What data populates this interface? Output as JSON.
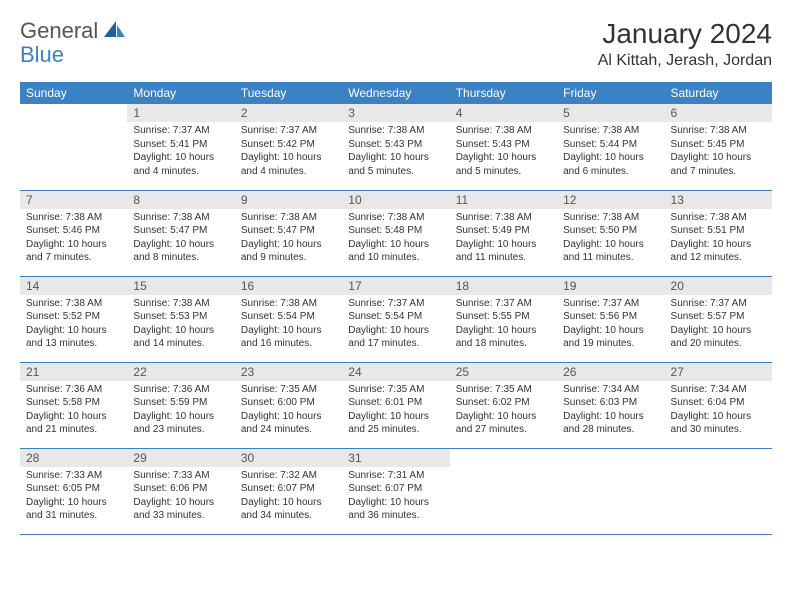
{
  "logo": {
    "text_dark": "General",
    "text_blue": "Blue"
  },
  "title": "January 2024",
  "location": "Al Kittah, Jerash, Jordan",
  "colors": {
    "header_bg": "#3b82c4",
    "header_text": "#ffffff",
    "daynum_bg": "#e8e8e8",
    "border": "#3b82c4",
    "body_text": "#333333"
  },
  "weekdays": [
    "Sunday",
    "Monday",
    "Tuesday",
    "Wednesday",
    "Thursday",
    "Friday",
    "Saturday"
  ],
  "weeks": [
    [
      null,
      {
        "n": "1",
        "sr": "Sunrise: 7:37 AM",
        "ss": "Sunset: 5:41 PM",
        "dl": "Daylight: 10 hours and 4 minutes."
      },
      {
        "n": "2",
        "sr": "Sunrise: 7:37 AM",
        "ss": "Sunset: 5:42 PM",
        "dl": "Daylight: 10 hours and 4 minutes."
      },
      {
        "n": "3",
        "sr": "Sunrise: 7:38 AM",
        "ss": "Sunset: 5:43 PM",
        "dl": "Daylight: 10 hours and 5 minutes."
      },
      {
        "n": "4",
        "sr": "Sunrise: 7:38 AM",
        "ss": "Sunset: 5:43 PM",
        "dl": "Daylight: 10 hours and 5 minutes."
      },
      {
        "n": "5",
        "sr": "Sunrise: 7:38 AM",
        "ss": "Sunset: 5:44 PM",
        "dl": "Daylight: 10 hours and 6 minutes."
      },
      {
        "n": "6",
        "sr": "Sunrise: 7:38 AM",
        "ss": "Sunset: 5:45 PM",
        "dl": "Daylight: 10 hours and 7 minutes."
      }
    ],
    [
      {
        "n": "7",
        "sr": "Sunrise: 7:38 AM",
        "ss": "Sunset: 5:46 PM",
        "dl": "Daylight: 10 hours and 7 minutes."
      },
      {
        "n": "8",
        "sr": "Sunrise: 7:38 AM",
        "ss": "Sunset: 5:47 PM",
        "dl": "Daylight: 10 hours and 8 minutes."
      },
      {
        "n": "9",
        "sr": "Sunrise: 7:38 AM",
        "ss": "Sunset: 5:47 PM",
        "dl": "Daylight: 10 hours and 9 minutes."
      },
      {
        "n": "10",
        "sr": "Sunrise: 7:38 AM",
        "ss": "Sunset: 5:48 PM",
        "dl": "Daylight: 10 hours and 10 minutes."
      },
      {
        "n": "11",
        "sr": "Sunrise: 7:38 AM",
        "ss": "Sunset: 5:49 PM",
        "dl": "Daylight: 10 hours and 11 minutes."
      },
      {
        "n": "12",
        "sr": "Sunrise: 7:38 AM",
        "ss": "Sunset: 5:50 PM",
        "dl": "Daylight: 10 hours and 11 minutes."
      },
      {
        "n": "13",
        "sr": "Sunrise: 7:38 AM",
        "ss": "Sunset: 5:51 PM",
        "dl": "Daylight: 10 hours and 12 minutes."
      }
    ],
    [
      {
        "n": "14",
        "sr": "Sunrise: 7:38 AM",
        "ss": "Sunset: 5:52 PM",
        "dl": "Daylight: 10 hours and 13 minutes."
      },
      {
        "n": "15",
        "sr": "Sunrise: 7:38 AM",
        "ss": "Sunset: 5:53 PM",
        "dl": "Daylight: 10 hours and 14 minutes."
      },
      {
        "n": "16",
        "sr": "Sunrise: 7:38 AM",
        "ss": "Sunset: 5:54 PM",
        "dl": "Daylight: 10 hours and 16 minutes."
      },
      {
        "n": "17",
        "sr": "Sunrise: 7:37 AM",
        "ss": "Sunset: 5:54 PM",
        "dl": "Daylight: 10 hours and 17 minutes."
      },
      {
        "n": "18",
        "sr": "Sunrise: 7:37 AM",
        "ss": "Sunset: 5:55 PM",
        "dl": "Daylight: 10 hours and 18 minutes."
      },
      {
        "n": "19",
        "sr": "Sunrise: 7:37 AM",
        "ss": "Sunset: 5:56 PM",
        "dl": "Daylight: 10 hours and 19 minutes."
      },
      {
        "n": "20",
        "sr": "Sunrise: 7:37 AM",
        "ss": "Sunset: 5:57 PM",
        "dl": "Daylight: 10 hours and 20 minutes."
      }
    ],
    [
      {
        "n": "21",
        "sr": "Sunrise: 7:36 AM",
        "ss": "Sunset: 5:58 PM",
        "dl": "Daylight: 10 hours and 21 minutes."
      },
      {
        "n": "22",
        "sr": "Sunrise: 7:36 AM",
        "ss": "Sunset: 5:59 PM",
        "dl": "Daylight: 10 hours and 23 minutes."
      },
      {
        "n": "23",
        "sr": "Sunrise: 7:35 AM",
        "ss": "Sunset: 6:00 PM",
        "dl": "Daylight: 10 hours and 24 minutes."
      },
      {
        "n": "24",
        "sr": "Sunrise: 7:35 AM",
        "ss": "Sunset: 6:01 PM",
        "dl": "Daylight: 10 hours and 25 minutes."
      },
      {
        "n": "25",
        "sr": "Sunrise: 7:35 AM",
        "ss": "Sunset: 6:02 PM",
        "dl": "Daylight: 10 hours and 27 minutes."
      },
      {
        "n": "26",
        "sr": "Sunrise: 7:34 AM",
        "ss": "Sunset: 6:03 PM",
        "dl": "Daylight: 10 hours and 28 minutes."
      },
      {
        "n": "27",
        "sr": "Sunrise: 7:34 AM",
        "ss": "Sunset: 6:04 PM",
        "dl": "Daylight: 10 hours and 30 minutes."
      }
    ],
    [
      {
        "n": "28",
        "sr": "Sunrise: 7:33 AM",
        "ss": "Sunset: 6:05 PM",
        "dl": "Daylight: 10 hours and 31 minutes."
      },
      {
        "n": "29",
        "sr": "Sunrise: 7:33 AM",
        "ss": "Sunset: 6:06 PM",
        "dl": "Daylight: 10 hours and 33 minutes."
      },
      {
        "n": "30",
        "sr": "Sunrise: 7:32 AM",
        "ss": "Sunset: 6:07 PM",
        "dl": "Daylight: 10 hours and 34 minutes."
      },
      {
        "n": "31",
        "sr": "Sunrise: 7:31 AM",
        "ss": "Sunset: 6:07 PM",
        "dl": "Daylight: 10 hours and 36 minutes."
      },
      null,
      null,
      null
    ]
  ]
}
